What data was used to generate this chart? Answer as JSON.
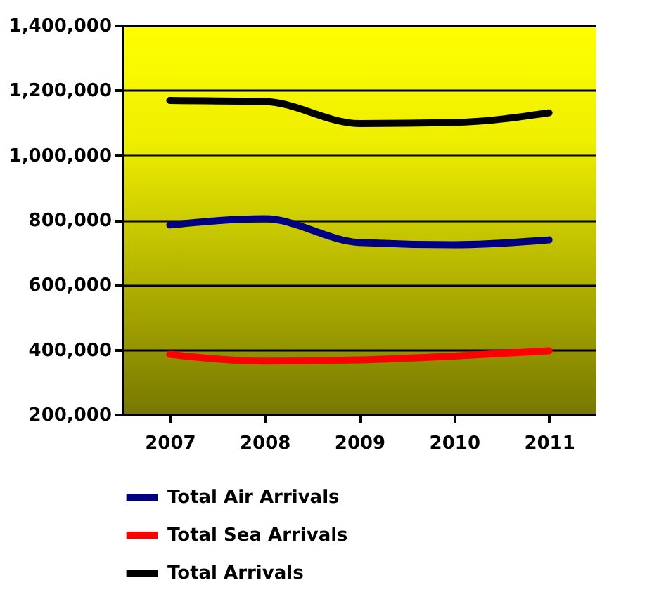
{
  "chart_data": {
    "type": "line",
    "categories": [
      "2007",
      "2008",
      "2009",
      "2010",
      "2011"
    ],
    "series": [
      {
        "name": "Total Air Arrivals",
        "color": "#000080",
        "values": [
          784000,
          803000,
          730000,
          723000,
          738000
        ]
      },
      {
        "name": "Total Sea Arrivals",
        "color": "#ff0000",
        "values": [
          385000,
          364000,
          368000,
          380000,
          396000
        ]
      },
      {
        "name": "Total Arrivals",
        "color": "#000000",
        "values": [
          1168000,
          1165000,
          1097000,
          1100000,
          1130000
        ]
      }
    ],
    "ylim": [
      200000,
      1400000
    ],
    "yticks": [
      {
        "value": 200000,
        "label": "200,000"
      },
      {
        "value": 400000,
        "label": "400,000"
      },
      {
        "value": 600000,
        "label": "600,000"
      },
      {
        "value": 800000,
        "label": "800,000"
      },
      {
        "value": 1000000,
        "label": "1,000,000"
      },
      {
        "value": 1200000,
        "label": "1,200,000"
      },
      {
        "value": 1400000,
        "label": "1,400,000"
      }
    ],
    "grid": "y",
    "legend": "bottom",
    "marker": "none",
    "line_style": "solid"
  }
}
